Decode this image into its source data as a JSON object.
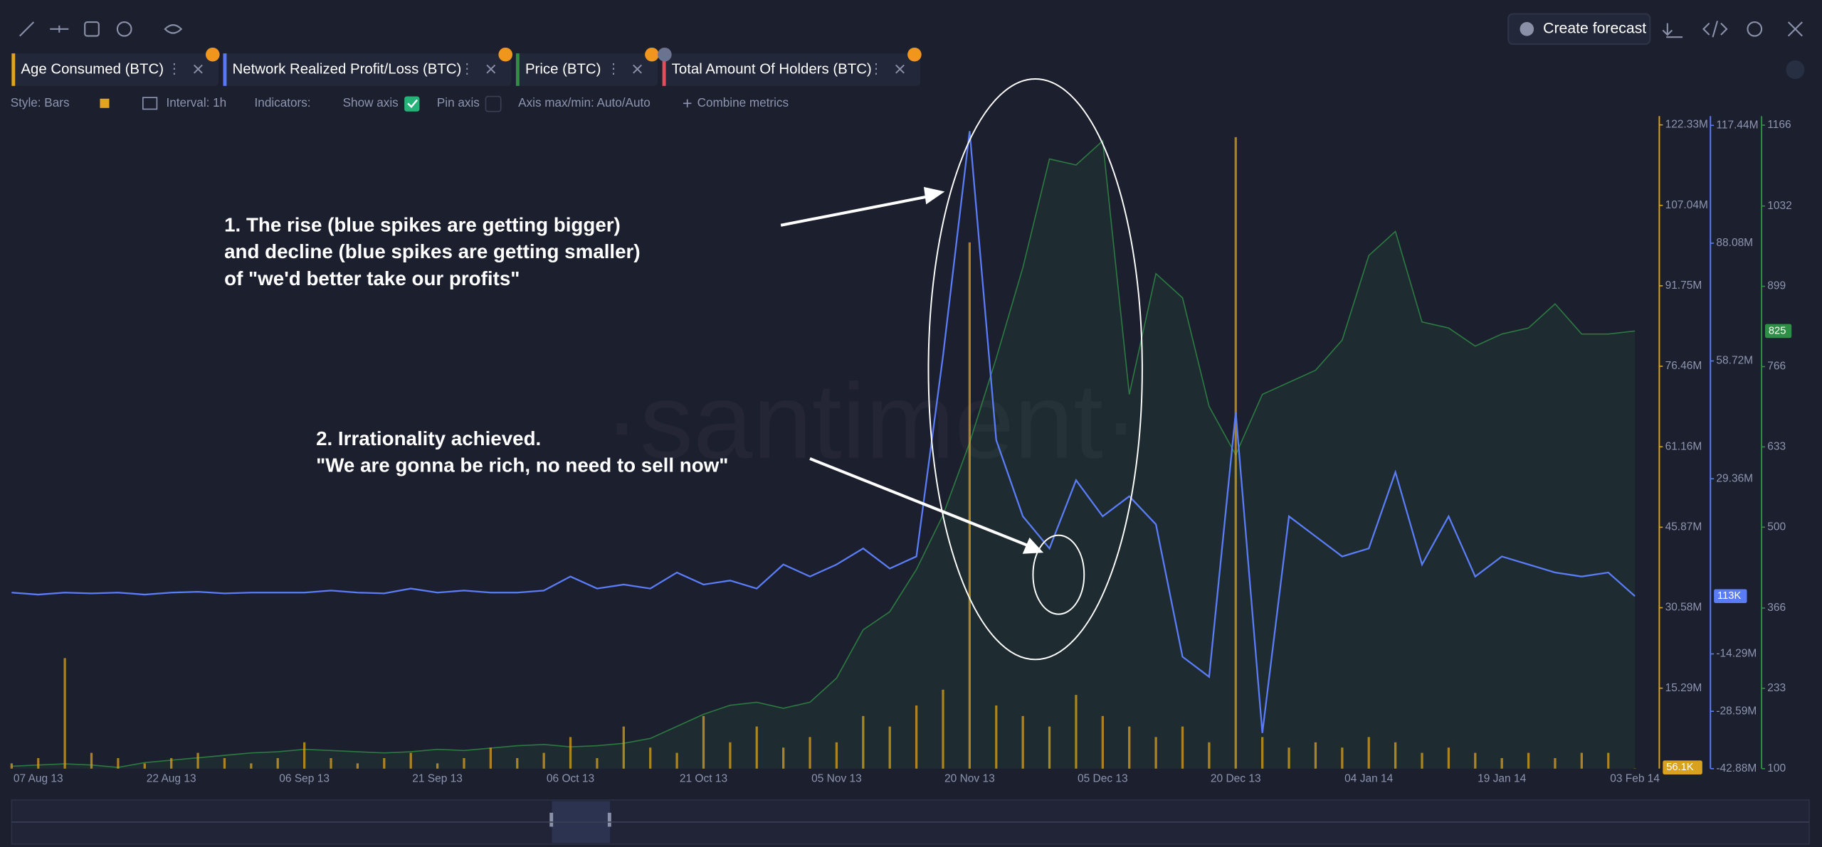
{
  "toolbar": {
    "create_forecast": "Create forecast"
  },
  "metrics": [
    {
      "name": "Age Consumed (BTC)",
      "color": "#e2a31f"
    },
    {
      "name": "Network Realized Profit/Loss (BTC)",
      "color": "#5a78f5"
    },
    {
      "name": "Price (BTC)",
      "color": "#2f8f46"
    },
    {
      "name": "Total Amount Of Holders (BTC)",
      "color": "#e0505a"
    }
  ],
  "settings": {
    "style": "Style: Bars",
    "interval": "Interval: 1h",
    "indicators": "Indicators:",
    "show_axis": "Show axis",
    "pin_axis": "Pin axis",
    "axis_maxmin": "Axis max/min: Auto/Auto",
    "combine": "Combine metrics"
  },
  "watermark": "·santiment·",
  "annotations": [
    {
      "lines": [
        "1. The rise (blue spikes are getting bigger)",
        "and decline (blue spikes are getting smaller)",
        "of \"we'd better take our profits\""
      ]
    },
    {
      "lines": [
        "2. Irrationality achieved.",
        "\"We are gonna be rich, no need to sell now\""
      ]
    }
  ],
  "chart_data": {
    "type": "line",
    "x": [
      "2013-08-04",
      "2013-08-07",
      "2013-08-10",
      "2013-08-13",
      "2013-08-16",
      "2013-08-19",
      "2013-08-22",
      "2013-08-25",
      "2013-08-28",
      "2013-08-31",
      "2013-09-03",
      "2013-09-06",
      "2013-09-09",
      "2013-09-12",
      "2013-09-15",
      "2013-09-18",
      "2013-09-21",
      "2013-09-24",
      "2013-09-27",
      "2013-09-30",
      "2013-10-03",
      "2013-10-06",
      "2013-10-09",
      "2013-10-12",
      "2013-10-15",
      "2013-10-18",
      "2013-10-21",
      "2013-10-24",
      "2013-10-27",
      "2013-10-30",
      "2013-11-02",
      "2013-11-05",
      "2013-11-08",
      "2013-11-11",
      "2013-11-14",
      "2013-11-17",
      "2013-11-20",
      "2013-11-23",
      "2013-11-26",
      "2013-11-29",
      "2013-12-02",
      "2013-12-05",
      "2013-12-08",
      "2013-12-11",
      "2013-12-14",
      "2013-12-17",
      "2013-12-20",
      "2013-12-23",
      "2013-12-26",
      "2013-12-29",
      "2014-01-01",
      "2014-01-04",
      "2014-01-07",
      "2014-01-10",
      "2014-01-13",
      "2014-01-16",
      "2014-01-19",
      "2014-01-22",
      "2014-01-25",
      "2014-01-28",
      "2014-01-31",
      "2014-02-03"
    ],
    "xlim": [
      "2013-08-04",
      "2014-02-03"
    ],
    "xticks": [
      {
        "value": "2013-08-07",
        "label": "07 Aug 13"
      },
      {
        "value": "2013-08-22",
        "label": "22 Aug 13"
      },
      {
        "value": "2013-09-06",
        "label": "06 Sep 13"
      },
      {
        "value": "2013-09-21",
        "label": "21 Sep 13"
      },
      {
        "value": "2013-10-06",
        "label": "06 Oct 13"
      },
      {
        "value": "2013-10-21",
        "label": "21 Oct 13"
      },
      {
        "value": "2013-11-05",
        "label": "05 Nov 13"
      },
      {
        "value": "2013-11-20",
        "label": "20 Nov 13"
      },
      {
        "value": "2013-12-05",
        "label": "05 Dec 13"
      },
      {
        "value": "2013-12-20",
        "label": "20 Dec 13"
      },
      {
        "value": "2014-01-04",
        "label": "04 Jan 14"
      },
      {
        "value": "2014-01-19",
        "label": "19 Jan 14"
      },
      {
        "value": "2014-02-03",
        "label": "03 Feb 14"
      }
    ],
    "ylim": [
      0,
      124
    ],
    "yticks": [
      {
        "value": 15.29,
        "label": "15.29M"
      },
      {
        "value": 30.58,
        "label": "30.58M"
      },
      {
        "value": 45.87,
        "label": "45.87M"
      },
      {
        "value": 61.16,
        "label": "61.16M"
      },
      {
        "value": 76.46,
        "label": "76.46M"
      },
      {
        "value": 91.75,
        "label": "91.75M"
      },
      {
        "value": 107.04,
        "label": "107.04M"
      },
      {
        "value": 122.33,
        "label": "122.33M"
      }
    ],
    "y2lim": [
      -42.88,
      119.75
    ],
    "y2ticks": [
      {
        "value": -42.88,
        "label": "-42.88M"
      },
      {
        "value": -28.59,
        "label": "-28.59M"
      },
      {
        "value": -14.29,
        "label": "-14.29M"
      },
      {
        "value": 29.36,
        "label": "29.36M"
      },
      {
        "value": 58.72,
        "label": "58.72M"
      },
      {
        "value": 88.08,
        "label": "88.08M"
      },
      {
        "value": 117.44,
        "label": "117.44M"
      }
    ],
    "y3lim": [
      100,
      1181
    ],
    "y3ticks": [
      100,
      233,
      366,
      500,
      633,
      766,
      899,
      1032,
      1166
    ],
    "series": [
      {
        "name": "Age Consumed (BTC)",
        "type": "bar",
        "axis": "y",
        "color": "#d9a21e",
        "current": {
          "value": 0.0561,
          "label": "56.1K"
        },
        "values": [
          1,
          2,
          21,
          3,
          2,
          1,
          2,
          3,
          2,
          1,
          2,
          5,
          2,
          1,
          2,
          3,
          1,
          2,
          4,
          2,
          3,
          6,
          2,
          8,
          4,
          3,
          10,
          5,
          8,
          4,
          6,
          5,
          10,
          8,
          12,
          15,
          100,
          12,
          10,
          8,
          14,
          10,
          8,
          6,
          8,
          5,
          120,
          6,
          4,
          5,
          4,
          6,
          5,
          3,
          4,
          3,
          2,
          3,
          2,
          3,
          3,
          0.0561
        ]
      },
      {
        "name": "Network Realized Profit/Loss (BTC)",
        "type": "line",
        "axis": "y2",
        "color": "#5a7cf7",
        "current": {
          "value": 0.113,
          "label": "113K"
        },
        "values": [
          1,
          0.5,
          1,
          0.8,
          1,
          0.5,
          1,
          1.2,
          0.8,
          1,
          1,
          1,
          1.5,
          1,
          0.8,
          2,
          1,
          1.5,
          1,
          1,
          1.5,
          5,
          2,
          3,
          2,
          6,
          3,
          4,
          2,
          8,
          5,
          8,
          12,
          7,
          10,
          60,
          116,
          39,
          20,
          12,
          29,
          20,
          25,
          18,
          -15,
          -20,
          46,
          -34,
          20,
          15,
          10,
          12,
          31,
          8,
          20,
          5,
          10,
          8,
          6,
          5,
          6,
          0.113
        ]
      },
      {
        "name": "Price (BTC)",
        "type": "area",
        "axis": "y3",
        "color": "#2f8f46",
        "current": 825,
        "values": [
          104,
          106,
          108,
          106,
          102,
          110,
          114,
          118,
          122,
          126,
          128,
          132,
          130,
          128,
          126,
          128,
          132,
          130,
          134,
          138,
          140,
          136,
          138,
          142,
          150,
          170,
          190,
          205,
          210,
          200,
          210,
          250,
          330,
          360,
          430,
          520,
          640,
          780,
          930,
          1110,
          1100,
          1140,
          720,
          920,
          880,
          700,
          620,
          720,
          740,
          760,
          810,
          950,
          990,
          840,
          830,
          800,
          820,
          830,
          870,
          820,
          820,
          825
        ]
      }
    ]
  }
}
